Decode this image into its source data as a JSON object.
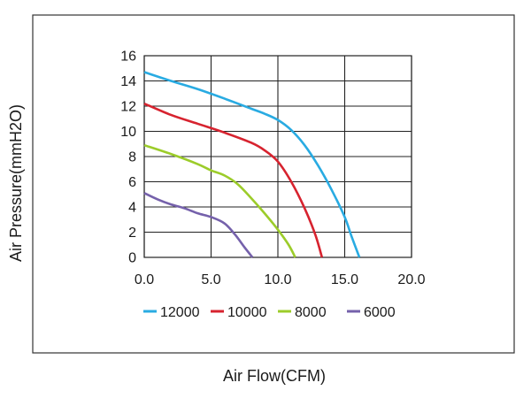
{
  "chart_data": {
    "type": "line",
    "xlabel": "Air Flow(CFM)",
    "ylabel": "Air Pressure(mmH2O)",
    "xlim": [
      0,
      20
    ],
    "ylim": [
      0,
      16
    ],
    "x_ticks": [
      "0.0",
      "5.0",
      "10.0",
      "15.0",
      "20.0"
    ],
    "y_ticks": [
      "0",
      "2",
      "4",
      "6",
      "8",
      "10",
      "12",
      "14",
      "16"
    ],
    "grid": true,
    "legend_position": "bottom",
    "series": [
      {
        "name": "12000",
        "color": "#29abe2",
        "points": [
          [
            0,
            14.7
          ],
          [
            2,
            14.0
          ],
          [
            4,
            13.35
          ],
          [
            6,
            12.6
          ],
          [
            8,
            11.8
          ],
          [
            9,
            11.4
          ],
          [
            10,
            10.9
          ],
          [
            11,
            10.1
          ],
          [
            12,
            8.9
          ],
          [
            13,
            7.3
          ],
          [
            14,
            5.4
          ],
          [
            15,
            3.2
          ],
          [
            15.5,
            1.7
          ],
          [
            16.1,
            0
          ]
        ]
      },
      {
        "name": "10000",
        "color": "#d7232f",
        "points": [
          [
            0,
            12.2
          ],
          [
            2,
            11.3
          ],
          [
            4,
            10.6
          ],
          [
            6,
            9.9
          ],
          [
            8,
            9.1
          ],
          [
            9,
            8.5
          ],
          [
            10,
            7.6
          ],
          [
            11,
            6.0
          ],
          [
            12,
            3.9
          ],
          [
            12.8,
            1.8
          ],
          [
            13.3,
            0
          ]
        ]
      },
      {
        "name": "8000",
        "color": "#9ccc2a",
        "points": [
          [
            0,
            8.9
          ],
          [
            2,
            8.2
          ],
          [
            4,
            7.4
          ],
          [
            5,
            6.9
          ],
          [
            6,
            6.5
          ],
          [
            7,
            5.8
          ],
          [
            8,
            4.7
          ],
          [
            9,
            3.5
          ],
          [
            10,
            2.2
          ],
          [
            10.8,
            1.0
          ],
          [
            11.3,
            0
          ]
        ]
      },
      {
        "name": "6000",
        "color": "#7561ab",
        "points": [
          [
            0,
            5.1
          ],
          [
            1,
            4.6
          ],
          [
            2,
            4.2
          ],
          [
            3,
            3.9
          ],
          [
            4,
            3.5
          ],
          [
            5,
            3.2
          ],
          [
            6,
            2.7
          ],
          [
            6.8,
            1.8
          ],
          [
            7.5,
            0.8
          ],
          [
            8.1,
            0
          ]
        ]
      }
    ]
  }
}
